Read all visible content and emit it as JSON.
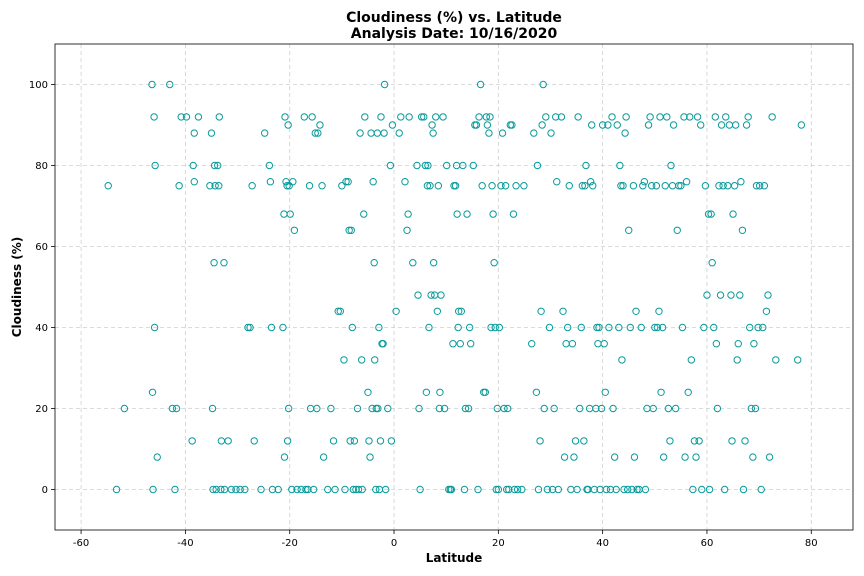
{
  "chart_data": {
    "type": "scatter",
    "title": "Cloudiness (%) vs. Latitude",
    "subtitle": "Analysis Date: 10/16/2020",
    "xlabel": "Latitude",
    "ylabel": "Cloudiness (%)",
    "xlim": [
      -65,
      88
    ],
    "ylim": [
      -10,
      110
    ],
    "xticks": [
      -60,
      -40,
      -20,
      0,
      20,
      40,
      60,
      80
    ],
    "yticks": [
      0,
      20,
      40,
      60,
      80,
      100
    ],
    "grid": true,
    "marker_color": "#0a9a9a",
    "points": [
      [
        -54.8,
        75
      ],
      [
        -53.2,
        0
      ],
      [
        -51.7,
        20
      ],
      [
        -46.4,
        100
      ],
      [
        -46.2,
        0
      ],
      [
        -46.3,
        24
      ],
      [
        -46.0,
        92
      ],
      [
        -45.8,
        80
      ],
      [
        -45.9,
        40
      ],
      [
        -45.4,
        8
      ],
      [
        -43.0,
        100
      ],
      [
        -42.5,
        20
      ],
      [
        -42.0,
        0
      ],
      [
        -41.7,
        20
      ],
      [
        -41.2,
        75
      ],
      [
        -40.8,
        92
      ],
      [
        -39.8,
        92
      ],
      [
        -38.7,
        12
      ],
      [
        -38.5,
        80
      ],
      [
        -38.3,
        88
      ],
      [
        -38.3,
        76
      ],
      [
        -37.5,
        92
      ],
      [
        -35.3,
        75
      ],
      [
        -35.0,
        88
      ],
      [
        -34.8,
        20
      ],
      [
        -34.7,
        0
      ],
      [
        -34.5,
        56
      ],
      [
        -34.4,
        80
      ],
      [
        -34.3,
        75
      ],
      [
        -34.1,
        0
      ],
      [
        -33.8,
        80
      ],
      [
        -33.6,
        75
      ],
      [
        -33.5,
        92
      ],
      [
        -33.2,
        0
      ],
      [
        -33.1,
        12
      ],
      [
        -32.6,
        56
      ],
      [
        -32.5,
        0
      ],
      [
        -31.8,
        12
      ],
      [
        -31.2,
        0
      ],
      [
        -30.3,
        0
      ],
      [
        -29.5,
        0
      ],
      [
        -28.6,
        0
      ],
      [
        -28.0,
        40
      ],
      [
        -27.6,
        40
      ],
      [
        -27.2,
        75
      ],
      [
        -26.8,
        12
      ],
      [
        -25.5,
        0
      ],
      [
        -24.8,
        88
      ],
      [
        -23.9,
        80
      ],
      [
        -23.7,
        76
      ],
      [
        -23.5,
        40
      ],
      [
        -23.3,
        0
      ],
      [
        -22.2,
        0
      ],
      [
        -21.3,
        40
      ],
      [
        -21.1,
        68
      ],
      [
        -21.0,
        8
      ],
      [
        -20.9,
        92
      ],
      [
        -20.7,
        76
      ],
      [
        -20.5,
        75
      ],
      [
        -20.4,
        12
      ],
      [
        -20.3,
        90
      ],
      [
        -20.2,
        20
      ],
      [
        -20.1,
        75
      ],
      [
        -19.9,
        68
      ],
      [
        -19.6,
        0
      ],
      [
        -19.4,
        76
      ],
      [
        -19.1,
        64
      ],
      [
        -18.6,
        0
      ],
      [
        -17.8,
        0
      ],
      [
        -17.2,
        92
      ],
      [
        -16.9,
        0
      ],
      [
        -16.5,
        0
      ],
      [
        -16.2,
        75
      ],
      [
        -16.0,
        20
      ],
      [
        -15.7,
        92
      ],
      [
        -15.4,
        0
      ],
      [
        -15.1,
        88
      ],
      [
        -14.8,
        20
      ],
      [
        -14.6,
        88
      ],
      [
        -14.2,
        90
      ],
      [
        -13.8,
        75
      ],
      [
        -13.5,
        8
      ],
      [
        -12.7,
        0
      ],
      [
        -12.1,
        20
      ],
      [
        -11.6,
        12
      ],
      [
        -11.3,
        0
      ],
      [
        -10.7,
        44
      ],
      [
        -10.3,
        44
      ],
      [
        -10.0,
        75
      ],
      [
        -9.6,
        32
      ],
      [
        -9.4,
        0
      ],
      [
        -9.2,
        76
      ],
      [
        -8.8,
        76
      ],
      [
        -8.6,
        64
      ],
      [
        -8.4,
        12
      ],
      [
        -8.2,
        64
      ],
      [
        -8.0,
        40
      ],
      [
        -7.8,
        0
      ],
      [
        -7.6,
        12
      ],
      [
        -7.3,
        0
      ],
      [
        -7.0,
        20
      ],
      [
        -6.8,
        0
      ],
      [
        -6.5,
        88
      ],
      [
        -6.2,
        32
      ],
      [
        -6.1,
        0
      ],
      [
        -5.8,
        68
      ],
      [
        -5.6,
        92
      ],
      [
        -5.0,
        24
      ],
      [
        -4.8,
        12
      ],
      [
        -4.6,
        8
      ],
      [
        -4.4,
        88
      ],
      [
        -4.2,
        20
      ],
      [
        -4.0,
        76
      ],
      [
        -3.8,
        56
      ],
      [
        -3.7,
        32
      ],
      [
        -3.5,
        0
      ],
      [
        -3.4,
        20
      ],
      [
        -3.2,
        88
      ],
      [
        -3.1,
        20
      ],
      [
        -2.9,
        40
      ],
      [
        -2.8,
        0
      ],
      [
        -2.6,
        12
      ],
      [
        -2.5,
        92
      ],
      [
        -2.3,
        36
      ],
      [
        -2.1,
        36
      ],
      [
        -1.9,
        88
      ],
      [
        -1.8,
        100
      ],
      [
        -1.6,
        0
      ],
      [
        -1.2,
        20
      ],
      [
        -0.7,
        80
      ],
      [
        -0.5,
        12
      ],
      [
        -0.3,
        90
      ],
      [
        0.4,
        44
      ],
      [
        1.0,
        88
      ],
      [
        1.3,
        92
      ],
      [
        2.1,
        76
      ],
      [
        2.5,
        64
      ],
      [
        2.7,
        68
      ],
      [
        2.9,
        92
      ],
      [
        3.6,
        56
      ],
      [
        4.4,
        80
      ],
      [
        4.6,
        48
      ],
      [
        4.8,
        20
      ],
      [
        5.0,
        0
      ],
      [
        5.3,
        92
      ],
      [
        5.7,
        92
      ],
      [
        6.0,
        80
      ],
      [
        6.2,
        24
      ],
      [
        6.4,
        75
      ],
      [
        6.5,
        80
      ],
      [
        6.7,
        40
      ],
      [
        6.9,
        75
      ],
      [
        7.1,
        48
      ],
      [
        7.3,
        90
      ],
      [
        7.5,
        88
      ],
      [
        7.6,
        56
      ],
      [
        7.8,
        48
      ],
      [
        8.0,
        92
      ],
      [
        8.3,
        44
      ],
      [
        8.5,
        75
      ],
      [
        8.7,
        20
      ],
      [
        8.8,
        24
      ],
      [
        9.0,
        48
      ],
      [
        9.4,
        92
      ],
      [
        9.7,
        20
      ],
      [
        10.1,
        80
      ],
      [
        10.5,
        0
      ],
      [
        10.8,
        0
      ],
      [
        11.0,
        0
      ],
      [
        11.3,
        36
      ],
      [
        11.5,
        75
      ],
      [
        11.8,
        75
      ],
      [
        12.0,
        80
      ],
      [
        12.1,
        68
      ],
      [
        12.3,
        40
      ],
      [
        12.4,
        44
      ],
      [
        12.7,
        36
      ],
      [
        12.9,
        44
      ],
      [
        13.2,
        80
      ],
      [
        13.5,
        0
      ],
      [
        13.7,
        20
      ],
      [
        14.0,
        68
      ],
      [
        14.3,
        20
      ],
      [
        14.5,
        40
      ],
      [
        14.7,
        36
      ],
      [
        15.2,
        80
      ],
      [
        15.5,
        90
      ],
      [
        15.8,
        90
      ],
      [
        16.1,
        0
      ],
      [
        16.3,
        92
      ],
      [
        16.6,
        100
      ],
      [
        16.9,
        75
      ],
      [
        17.2,
        24
      ],
      [
        17.5,
        24
      ],
      [
        17.7,
        92
      ],
      [
        17.9,
        90
      ],
      [
        18.2,
        88
      ],
      [
        18.4,
        92
      ],
      [
        18.6,
        40
      ],
      [
        18.8,
        75
      ],
      [
        19.0,
        68
      ],
      [
        19.2,
        56
      ],
      [
        19.4,
        40
      ],
      [
        19.6,
        0
      ],
      [
        19.8,
        20
      ],
      [
        20.0,
        0
      ],
      [
        20.2,
        40
      ],
      [
        20.5,
        75
      ],
      [
        20.8,
        88
      ],
      [
        21.1,
        20
      ],
      [
        21.4,
        75
      ],
      [
        21.6,
        0
      ],
      [
        21.8,
        20
      ],
      [
        22.0,
        0
      ],
      [
        22.3,
        90
      ],
      [
        22.6,
        90
      ],
      [
        22.9,
        68
      ],
      [
        23.1,
        0
      ],
      [
        23.4,
        75
      ],
      [
        23.7,
        0
      ],
      [
        24.5,
        0
      ],
      [
        24.9,
        75
      ],
      [
        26.4,
        36
      ],
      [
        26.8,
        88
      ],
      [
        27.3,
        24
      ],
      [
        27.5,
        80
      ],
      [
        27.7,
        0
      ],
      [
        28.0,
        12
      ],
      [
        28.2,
        44
      ],
      [
        28.4,
        90
      ],
      [
        28.6,
        100
      ],
      [
        28.8,
        20
      ],
      [
        29.1,
        92
      ],
      [
        29.4,
        0
      ],
      [
        29.8,
        40
      ],
      [
        30.1,
        88
      ],
      [
        30.4,
        0
      ],
      [
        30.7,
        20
      ],
      [
        31.0,
        92
      ],
      [
        31.2,
        76
      ],
      [
        31.5,
        0
      ],
      [
        32.1,
        92
      ],
      [
        32.4,
        44
      ],
      [
        32.7,
        8
      ],
      [
        33.0,
        36
      ],
      [
        33.3,
        40
      ],
      [
        33.6,
        75
      ],
      [
        33.9,
        0
      ],
      [
        34.2,
        36
      ],
      [
        34.5,
        8
      ],
      [
        34.8,
        12
      ],
      [
        35.1,
        0
      ],
      [
        35.3,
        92
      ],
      [
        35.6,
        20
      ],
      [
        35.9,
        40
      ],
      [
        36.1,
        75
      ],
      [
        36.4,
        12
      ],
      [
        36.6,
        75
      ],
      [
        36.8,
        80
      ],
      [
        37.0,
        0
      ],
      [
        37.2,
        0
      ],
      [
        37.5,
        20
      ],
      [
        37.7,
        76
      ],
      [
        37.9,
        90
      ],
      [
        38.1,
        75
      ],
      [
        38.4,
        0
      ],
      [
        38.7,
        20
      ],
      [
        38.9,
        40
      ],
      [
        39.1,
        36
      ],
      [
        39.3,
        40
      ],
      [
        39.5,
        0
      ],
      [
        39.8,
        20
      ],
      [
        40.0,
        90
      ],
      [
        40.3,
        36
      ],
      [
        40.5,
        24
      ],
      [
        40.7,
        0
      ],
      [
        41.0,
        90
      ],
      [
        41.2,
        40
      ],
      [
        41.5,
        0
      ],
      [
        41.8,
        92
      ],
      [
        42.0,
        20
      ],
      [
        42.3,
        8
      ],
      [
        42.6,
        0
      ],
      [
        42.8,
        90
      ],
      [
        43.1,
        40
      ],
      [
        43.3,
        80
      ],
      [
        43.5,
        75
      ],
      [
        43.7,
        32
      ],
      [
        43.9,
        75
      ],
      [
        44.1,
        0
      ],
      [
        44.3,
        88
      ],
      [
        44.5,
        92
      ],
      [
        44.8,
        0
      ],
      [
        45.0,
        64
      ],
      [
        45.3,
        40
      ],
      [
        45.6,
        0
      ],
      [
        45.9,
        75
      ],
      [
        46.1,
        8
      ],
      [
        46.4,
        44
      ],
      [
        46.6,
        0
      ],
      [
        47.0,
        0
      ],
      [
        47.4,
        40
      ],
      [
        47.7,
        75
      ],
      [
        48.0,
        76
      ],
      [
        48.2,
        0
      ],
      [
        48.5,
        20
      ],
      [
        48.8,
        90
      ],
      [
        49.1,
        92
      ],
      [
        49.4,
        75
      ],
      [
        49.7,
        20
      ],
      [
        50.0,
        40
      ],
      [
        50.3,
        75
      ],
      [
        50.5,
        40
      ],
      [
        50.8,
        44
      ],
      [
        51.0,
        92
      ],
      [
        51.2,
        24
      ],
      [
        51.5,
        40
      ],
      [
        51.7,
        8
      ],
      [
        52.0,
        75
      ],
      [
        52.3,
        92
      ],
      [
        52.6,
        20
      ],
      [
        52.9,
        12
      ],
      [
        53.1,
        80
      ],
      [
        53.4,
        75
      ],
      [
        53.6,
        90
      ],
      [
        54.0,
        20
      ],
      [
        54.3,
        64
      ],
      [
        54.6,
        75
      ],
      [
        55.0,
        75
      ],
      [
        55.3,
        40
      ],
      [
        55.6,
        92
      ],
      [
        55.8,
        8
      ],
      [
        56.1,
        76
      ],
      [
        56.4,
        24
      ],
      [
        56.7,
        92
      ],
      [
        57.0,
        32
      ],
      [
        57.3,
        0
      ],
      [
        57.6,
        12
      ],
      [
        57.9,
        8
      ],
      [
        58.2,
        92
      ],
      [
        58.5,
        12
      ],
      [
        58.8,
        90
      ],
      [
        59.0,
        0
      ],
      [
        59.4,
        40
      ],
      [
        59.7,
        75
      ],
      [
        60.0,
        48
      ],
      [
        60.3,
        68
      ],
      [
        60.5,
        0
      ],
      [
        60.8,
        68
      ],
      [
        61.0,
        56
      ],
      [
        61.3,
        40
      ],
      [
        61.6,
        92
      ],
      [
        61.8,
        36
      ],
      [
        62.0,
        20
      ],
      [
        62.3,
        75
      ],
      [
        62.6,
        48
      ],
      [
        62.8,
        90
      ],
      [
        63.1,
        75
      ],
      [
        63.4,
        0
      ],
      [
        63.6,
        92
      ],
      [
        64.0,
        75
      ],
      [
        64.3,
        90
      ],
      [
        64.6,
        48
      ],
      [
        64.8,
        12
      ],
      [
        65.0,
        68
      ],
      [
        65.3,
        75
      ],
      [
        65.5,
        90
      ],
      [
        65.8,
        32
      ],
      [
        66.0,
        36
      ],
      [
        66.3,
        48
      ],
      [
        66.5,
        76
      ],
      [
        66.8,
        64
      ],
      [
        67.0,
        0
      ],
      [
        67.3,
        12
      ],
      [
        67.6,
        90
      ],
      [
        67.9,
        92
      ],
      [
        68.2,
        40
      ],
      [
        68.5,
        20
      ],
      [
        68.8,
        8
      ],
      [
        69.0,
        36
      ],
      [
        69.3,
        20
      ],
      [
        69.5,
        75
      ],
      [
        69.8,
        40
      ],
      [
        70.1,
        75
      ],
      [
        70.4,
        0
      ],
      [
        70.7,
        40
      ],
      [
        71.0,
        75
      ],
      [
        71.4,
        44
      ],
      [
        71.7,
        48
      ],
      [
        72.0,
        8
      ],
      [
        72.5,
        92
      ],
      [
        73.2,
        32
      ],
      [
        77.4,
        32
      ],
      [
        78.1,
        90
      ]
    ]
  }
}
